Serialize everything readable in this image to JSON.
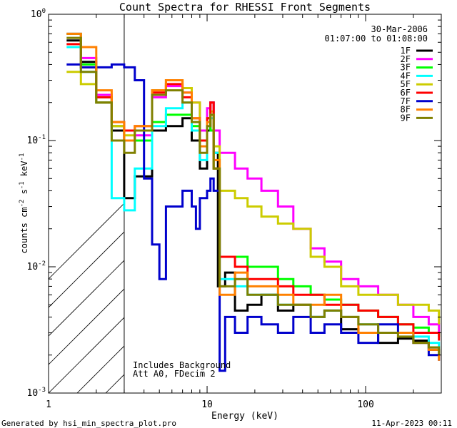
{
  "page": {
    "footer_left": "Generated by hsi_min_spectra_plot.pro",
    "footer_right": "11-Apr-2023 00:11"
  },
  "chart_data": {
    "type": "line",
    "title": "Count Spectra for RHESSI Front Segments",
    "xlabel": "Energy (keV)",
    "ylabel_parts": [
      "counts cm",
      "-2",
      " s",
      "-1",
      " keV",
      "-1"
    ],
    "xscale": "log",
    "yscale": "log",
    "xlim": [
      1,
      300
    ],
    "ylim": [
      0.001,
      1
    ],
    "x_ticks": [
      {
        "value": 1,
        "label": "1"
      },
      {
        "value": 10,
        "label": "10"
      },
      {
        "value": 100,
        "label": "100"
      }
    ],
    "y_ticks": [
      {
        "value": 0.001,
        "base": "10",
        "exp": "-3"
      },
      {
        "value": 0.01,
        "base": "10",
        "exp": "-2"
      },
      {
        "value": 0.1,
        "base": "10",
        "exp": "-1"
      },
      {
        "value": 1,
        "base": "10",
        "exp": "0"
      }
    ],
    "date_label": "30-Mar-2006",
    "time_label": "01:07:00 to 01:08:00",
    "annotation_lines": [
      "Includes Background",
      "Att A0, FDecim 2"
    ],
    "excluded_region_keV": [
      1,
      3
    ],
    "legend_position": "top-right",
    "series": [
      {
        "name": "1F",
        "color": "#000000",
        "points": [
          [
            1.3,
            0.62
          ],
          [
            1.6,
            0.42
          ],
          [
            2.0,
            0.2
          ],
          [
            2.5,
            0.12
          ],
          [
            3.0,
            0.035
          ],
          [
            3.5,
            0.052
          ],
          [
            4.5,
            0.12
          ],
          [
            5.5,
            0.13
          ],
          [
            7,
            0.15
          ],
          [
            8,
            0.1
          ],
          [
            9,
            0.06
          ],
          [
            10,
            0.12
          ],
          [
            10.5,
            0.2
          ],
          [
            11,
            0.08
          ],
          [
            11.7,
            0.007
          ],
          [
            13,
            0.009
          ],
          [
            15,
            0.0045
          ],
          [
            18,
            0.005
          ],
          [
            22,
            0.006
          ],
          [
            28,
            0.0045
          ],
          [
            35,
            0.005
          ],
          [
            45,
            0.004
          ],
          [
            55,
            0.0045
          ],
          [
            70,
            0.0032
          ],
          [
            90,
            0.003
          ],
          [
            120,
            0.0025
          ],
          [
            160,
            0.0027
          ],
          [
            200,
            0.0026
          ],
          [
            250,
            0.0022
          ],
          [
            290,
            0.002
          ]
        ]
      },
      {
        "name": "2F",
        "color": "#ff00ff",
        "points": [
          [
            1.3,
            0.7
          ],
          [
            1.6,
            0.45
          ],
          [
            2.0,
            0.23
          ],
          [
            2.5,
            0.13
          ],
          [
            3.0,
            0.1
          ],
          [
            3.5,
            0.11
          ],
          [
            4.5,
            0.22
          ],
          [
            5.5,
            0.27
          ],
          [
            7,
            0.24
          ],
          [
            8,
            0.2
          ],
          [
            9,
            0.12
          ],
          [
            10,
            0.18
          ],
          [
            10.5,
            0.2
          ],
          [
            11,
            0.12
          ],
          [
            12,
            0.08
          ],
          [
            15,
            0.06
          ],
          [
            18,
            0.05
          ],
          [
            22,
            0.04
          ],
          [
            28,
            0.03
          ],
          [
            35,
            0.02
          ],
          [
            45,
            0.014
          ],
          [
            55,
            0.011
          ],
          [
            70,
            0.008
          ],
          [
            90,
            0.007
          ],
          [
            120,
            0.006
          ],
          [
            160,
            0.005
          ],
          [
            200,
            0.004
          ],
          [
            250,
            0.0035
          ],
          [
            290,
            0.003
          ]
        ]
      },
      {
        "name": "3F",
        "color": "#00ff00",
        "points": [
          [
            1.3,
            0.7
          ],
          [
            1.6,
            0.4
          ],
          [
            2.0,
            0.22
          ],
          [
            2.5,
            0.13
          ],
          [
            3.0,
            0.1
          ],
          [
            3.5,
            0.1
          ],
          [
            4.5,
            0.14
          ],
          [
            5.5,
            0.16
          ],
          [
            7,
            0.16
          ],
          [
            8,
            0.13
          ],
          [
            9,
            0.1
          ],
          [
            10,
            0.15
          ],
          [
            10.5,
            0.12
          ],
          [
            11,
            0.06
          ],
          [
            12,
            0.012
          ],
          [
            15,
            0.012
          ],
          [
            18,
            0.01
          ],
          [
            22,
            0.01
          ],
          [
            28,
            0.008
          ],
          [
            35,
            0.007
          ],
          [
            45,
            0.006
          ],
          [
            55,
            0.0055
          ],
          [
            70,
            0.005
          ],
          [
            90,
            0.0045
          ],
          [
            120,
            0.004
          ],
          [
            160,
            0.0035
          ],
          [
            200,
            0.0033
          ],
          [
            250,
            0.003
          ],
          [
            290,
            0.0028
          ]
        ]
      },
      {
        "name": "4F",
        "color": "#00ffff",
        "points": [
          [
            1.3,
            0.55
          ],
          [
            1.6,
            0.35
          ],
          [
            2.0,
            0.2
          ],
          [
            2.5,
            0.035
          ],
          [
            3.0,
            0.028
          ],
          [
            3.5,
            0.06
          ],
          [
            4.5,
            0.13
          ],
          [
            5.5,
            0.18
          ],
          [
            7,
            0.2
          ],
          [
            8,
            0.12
          ],
          [
            9,
            0.07
          ],
          [
            10,
            0.15
          ],
          [
            10.5,
            0.15
          ],
          [
            11,
            0.08
          ],
          [
            12,
            0.008
          ],
          [
            15,
            0.007
          ],
          [
            18,
            0.006
          ],
          [
            22,
            0.006
          ],
          [
            28,
            0.005
          ],
          [
            35,
            0.005
          ],
          [
            45,
            0.004
          ],
          [
            55,
            0.0045
          ],
          [
            70,
            0.004
          ],
          [
            90,
            0.0035
          ],
          [
            120,
            0.003
          ],
          [
            160,
            0.003
          ],
          [
            200,
            0.0028
          ],
          [
            250,
            0.0025
          ],
          [
            290,
            0.002
          ]
        ]
      },
      {
        "name": "5F",
        "color": "#cccc00",
        "points": [
          [
            1.3,
            0.35
          ],
          [
            1.6,
            0.28
          ],
          [
            2.0,
            0.2
          ],
          [
            2.5,
            0.13
          ],
          [
            3.0,
            0.11
          ],
          [
            3.5,
            0.12
          ],
          [
            4.5,
            0.25
          ],
          [
            5.5,
            0.3
          ],
          [
            7,
            0.26
          ],
          [
            8,
            0.2
          ],
          [
            9,
            0.1
          ],
          [
            10,
            0.15
          ],
          [
            10.5,
            0.17
          ],
          [
            11,
            0.09
          ],
          [
            12,
            0.04
          ],
          [
            15,
            0.035
          ],
          [
            18,
            0.03
          ],
          [
            22,
            0.025
          ],
          [
            28,
            0.022
          ],
          [
            35,
            0.02
          ],
          [
            45,
            0.012
          ],
          [
            55,
            0.01
          ],
          [
            70,
            0.007
          ],
          [
            90,
            0.006
          ],
          [
            120,
            0.006
          ],
          [
            160,
            0.005
          ],
          [
            200,
            0.005
          ],
          [
            250,
            0.0045
          ],
          [
            290,
            0.0035
          ]
        ]
      },
      {
        "name": "6F",
        "color": "#ff0000",
        "points": [
          [
            1.3,
            0.58
          ],
          [
            1.6,
            0.38
          ],
          [
            2.0,
            0.22
          ],
          [
            2.5,
            0.14
          ],
          [
            3.0,
            0.12
          ],
          [
            3.5,
            0.13
          ],
          [
            4.5,
            0.24
          ],
          [
            5.5,
            0.28
          ],
          [
            7,
            0.22
          ],
          [
            8,
            0.15
          ],
          [
            9,
            0.1
          ],
          [
            10,
            0.15
          ],
          [
            10.5,
            0.2
          ],
          [
            11,
            0.06
          ],
          [
            12,
            0.012
          ],
          [
            15,
            0.01
          ],
          [
            18,
            0.008
          ],
          [
            22,
            0.008
          ],
          [
            28,
            0.007
          ],
          [
            35,
            0.006
          ],
          [
            45,
            0.006
          ],
          [
            55,
            0.005
          ],
          [
            70,
            0.005
          ],
          [
            90,
            0.0045
          ],
          [
            120,
            0.004
          ],
          [
            160,
            0.0035
          ],
          [
            200,
            0.003
          ],
          [
            250,
            0.003
          ],
          [
            290,
            0.0026
          ]
        ]
      },
      {
        "name": "7F",
        "color": "#0000cc",
        "points": [
          [
            1.3,
            0.4
          ],
          [
            1.6,
            0.38
          ],
          [
            2.0,
            0.38
          ],
          [
            2.5,
            0.4
          ],
          [
            3.0,
            0.38
          ],
          [
            3.5,
            0.3
          ],
          [
            4.0,
            0.05
          ],
          [
            4.5,
            0.015
          ],
          [
            5.0,
            0.008
          ],
          [
            5.5,
            0.03
          ],
          [
            6,
            0.03
          ],
          [
            7,
            0.04
          ],
          [
            8,
            0.03
          ],
          [
            8.5,
            0.02
          ],
          [
            9,
            0.035
          ],
          [
            10,
            0.04
          ],
          [
            10.5,
            0.05
          ],
          [
            11,
            0.04
          ],
          [
            12,
            0.0015
          ],
          [
            13,
            0.004
          ],
          [
            15,
            0.003
          ],
          [
            18,
            0.004
          ],
          [
            22,
            0.0035
          ],
          [
            28,
            0.003
          ],
          [
            35,
            0.004
          ],
          [
            45,
            0.003
          ],
          [
            55,
            0.0035
          ],
          [
            70,
            0.003
          ],
          [
            90,
            0.0025
          ],
          [
            120,
            0.0035
          ],
          [
            160,
            0.003
          ],
          [
            200,
            0.0025
          ],
          [
            250,
            0.002
          ],
          [
            290,
            0.0018
          ]
        ]
      },
      {
        "name": "8F",
        "color": "#ff8000",
        "points": [
          [
            1.3,
            0.7
          ],
          [
            1.6,
            0.55
          ],
          [
            2.0,
            0.25
          ],
          [
            2.5,
            0.14
          ],
          [
            3.0,
            0.1
          ],
          [
            3.5,
            0.13
          ],
          [
            4.5,
            0.25
          ],
          [
            5.5,
            0.3
          ],
          [
            7,
            0.24
          ],
          [
            8,
            0.15
          ],
          [
            9,
            0.09
          ],
          [
            10,
            0.14
          ],
          [
            10.5,
            0.16
          ],
          [
            11,
            0.07
          ],
          [
            12,
            0.006
          ],
          [
            15,
            0.009
          ],
          [
            18,
            0.007
          ],
          [
            22,
            0.007
          ],
          [
            28,
            0.006
          ],
          [
            35,
            0.005
          ],
          [
            45,
            0.005
          ],
          [
            55,
            0.006
          ],
          [
            70,
            0.004
          ],
          [
            90,
            0.003
          ],
          [
            120,
            0.003
          ],
          [
            160,
            0.003
          ],
          [
            200,
            0.0025
          ],
          [
            250,
            0.0022
          ],
          [
            290,
            0.0018
          ]
        ]
      },
      {
        "name": "9F",
        "color": "#808000",
        "points": [
          [
            1.3,
            0.65
          ],
          [
            1.6,
            0.35
          ],
          [
            2.0,
            0.2
          ],
          [
            2.5,
            0.1
          ],
          [
            3.0,
            0.08
          ],
          [
            3.5,
            0.12
          ],
          [
            4.5,
            0.23
          ],
          [
            5.5,
            0.25
          ],
          [
            7,
            0.2
          ],
          [
            8,
            0.14
          ],
          [
            9,
            0.08
          ],
          [
            10,
            0.13
          ],
          [
            10.5,
            0.16
          ],
          [
            11,
            0.06
          ],
          [
            12,
            0.007
          ],
          [
            15,
            0.008
          ],
          [
            18,
            0.006
          ],
          [
            22,
            0.006
          ],
          [
            28,
            0.005
          ],
          [
            35,
            0.005
          ],
          [
            45,
            0.004
          ],
          [
            55,
            0.0045
          ],
          [
            70,
            0.004
          ],
          [
            90,
            0.0035
          ],
          [
            120,
            0.003
          ],
          [
            160,
            0.0028
          ],
          [
            200,
            0.0025
          ],
          [
            250,
            0.0023
          ],
          [
            290,
            0.002
          ]
        ]
      }
    ]
  }
}
